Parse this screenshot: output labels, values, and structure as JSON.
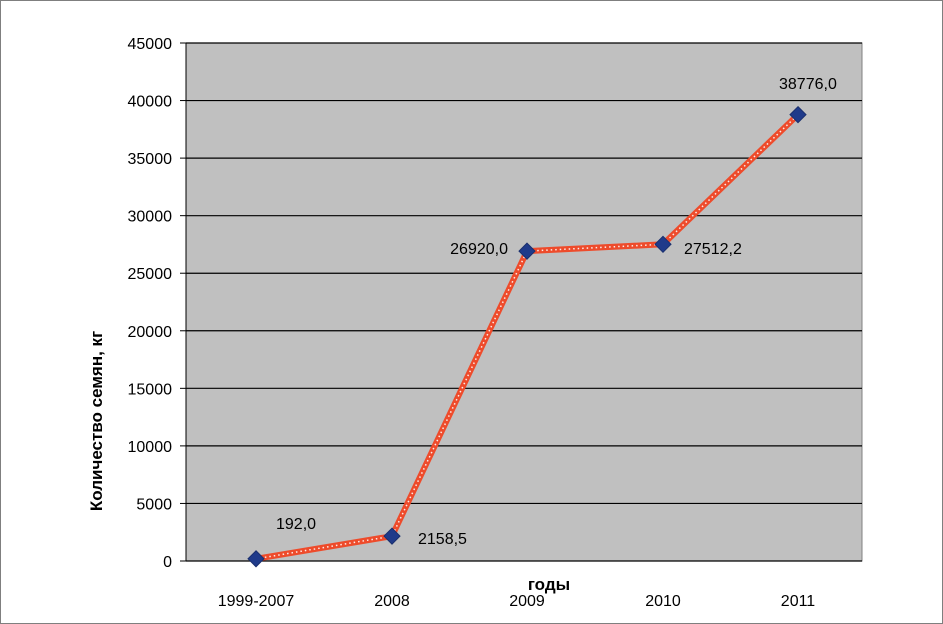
{
  "chart_data": {
    "type": "line",
    "categories": [
      "1999-2007",
      "2008",
      "2009",
      "2010",
      "2011"
    ],
    "series": [
      {
        "values": [
          192.0,
          2158.5,
          26920.0,
          27512.2,
          38776.0
        ]
      }
    ],
    "data_labels": [
      "192,0",
      "2158,5",
      "26920,0",
      "27512,2",
      "38776,0"
    ],
    "xlabel": "годы",
    "ylabel": "Количество семян, кг",
    "ylim": [
      0,
      45000
    ],
    "yticks": [
      "0",
      "5000",
      "10000",
      "15000",
      "20000",
      "25000",
      "30000",
      "35000",
      "40000",
      "45000"
    ],
    "grid": true,
    "colors": {
      "plot_background": "#c0c0c0",
      "line": "#ee4b2b",
      "line_highlight": "#ffffff",
      "marker": "#1f3a8a",
      "gridline": "#000000"
    }
  }
}
